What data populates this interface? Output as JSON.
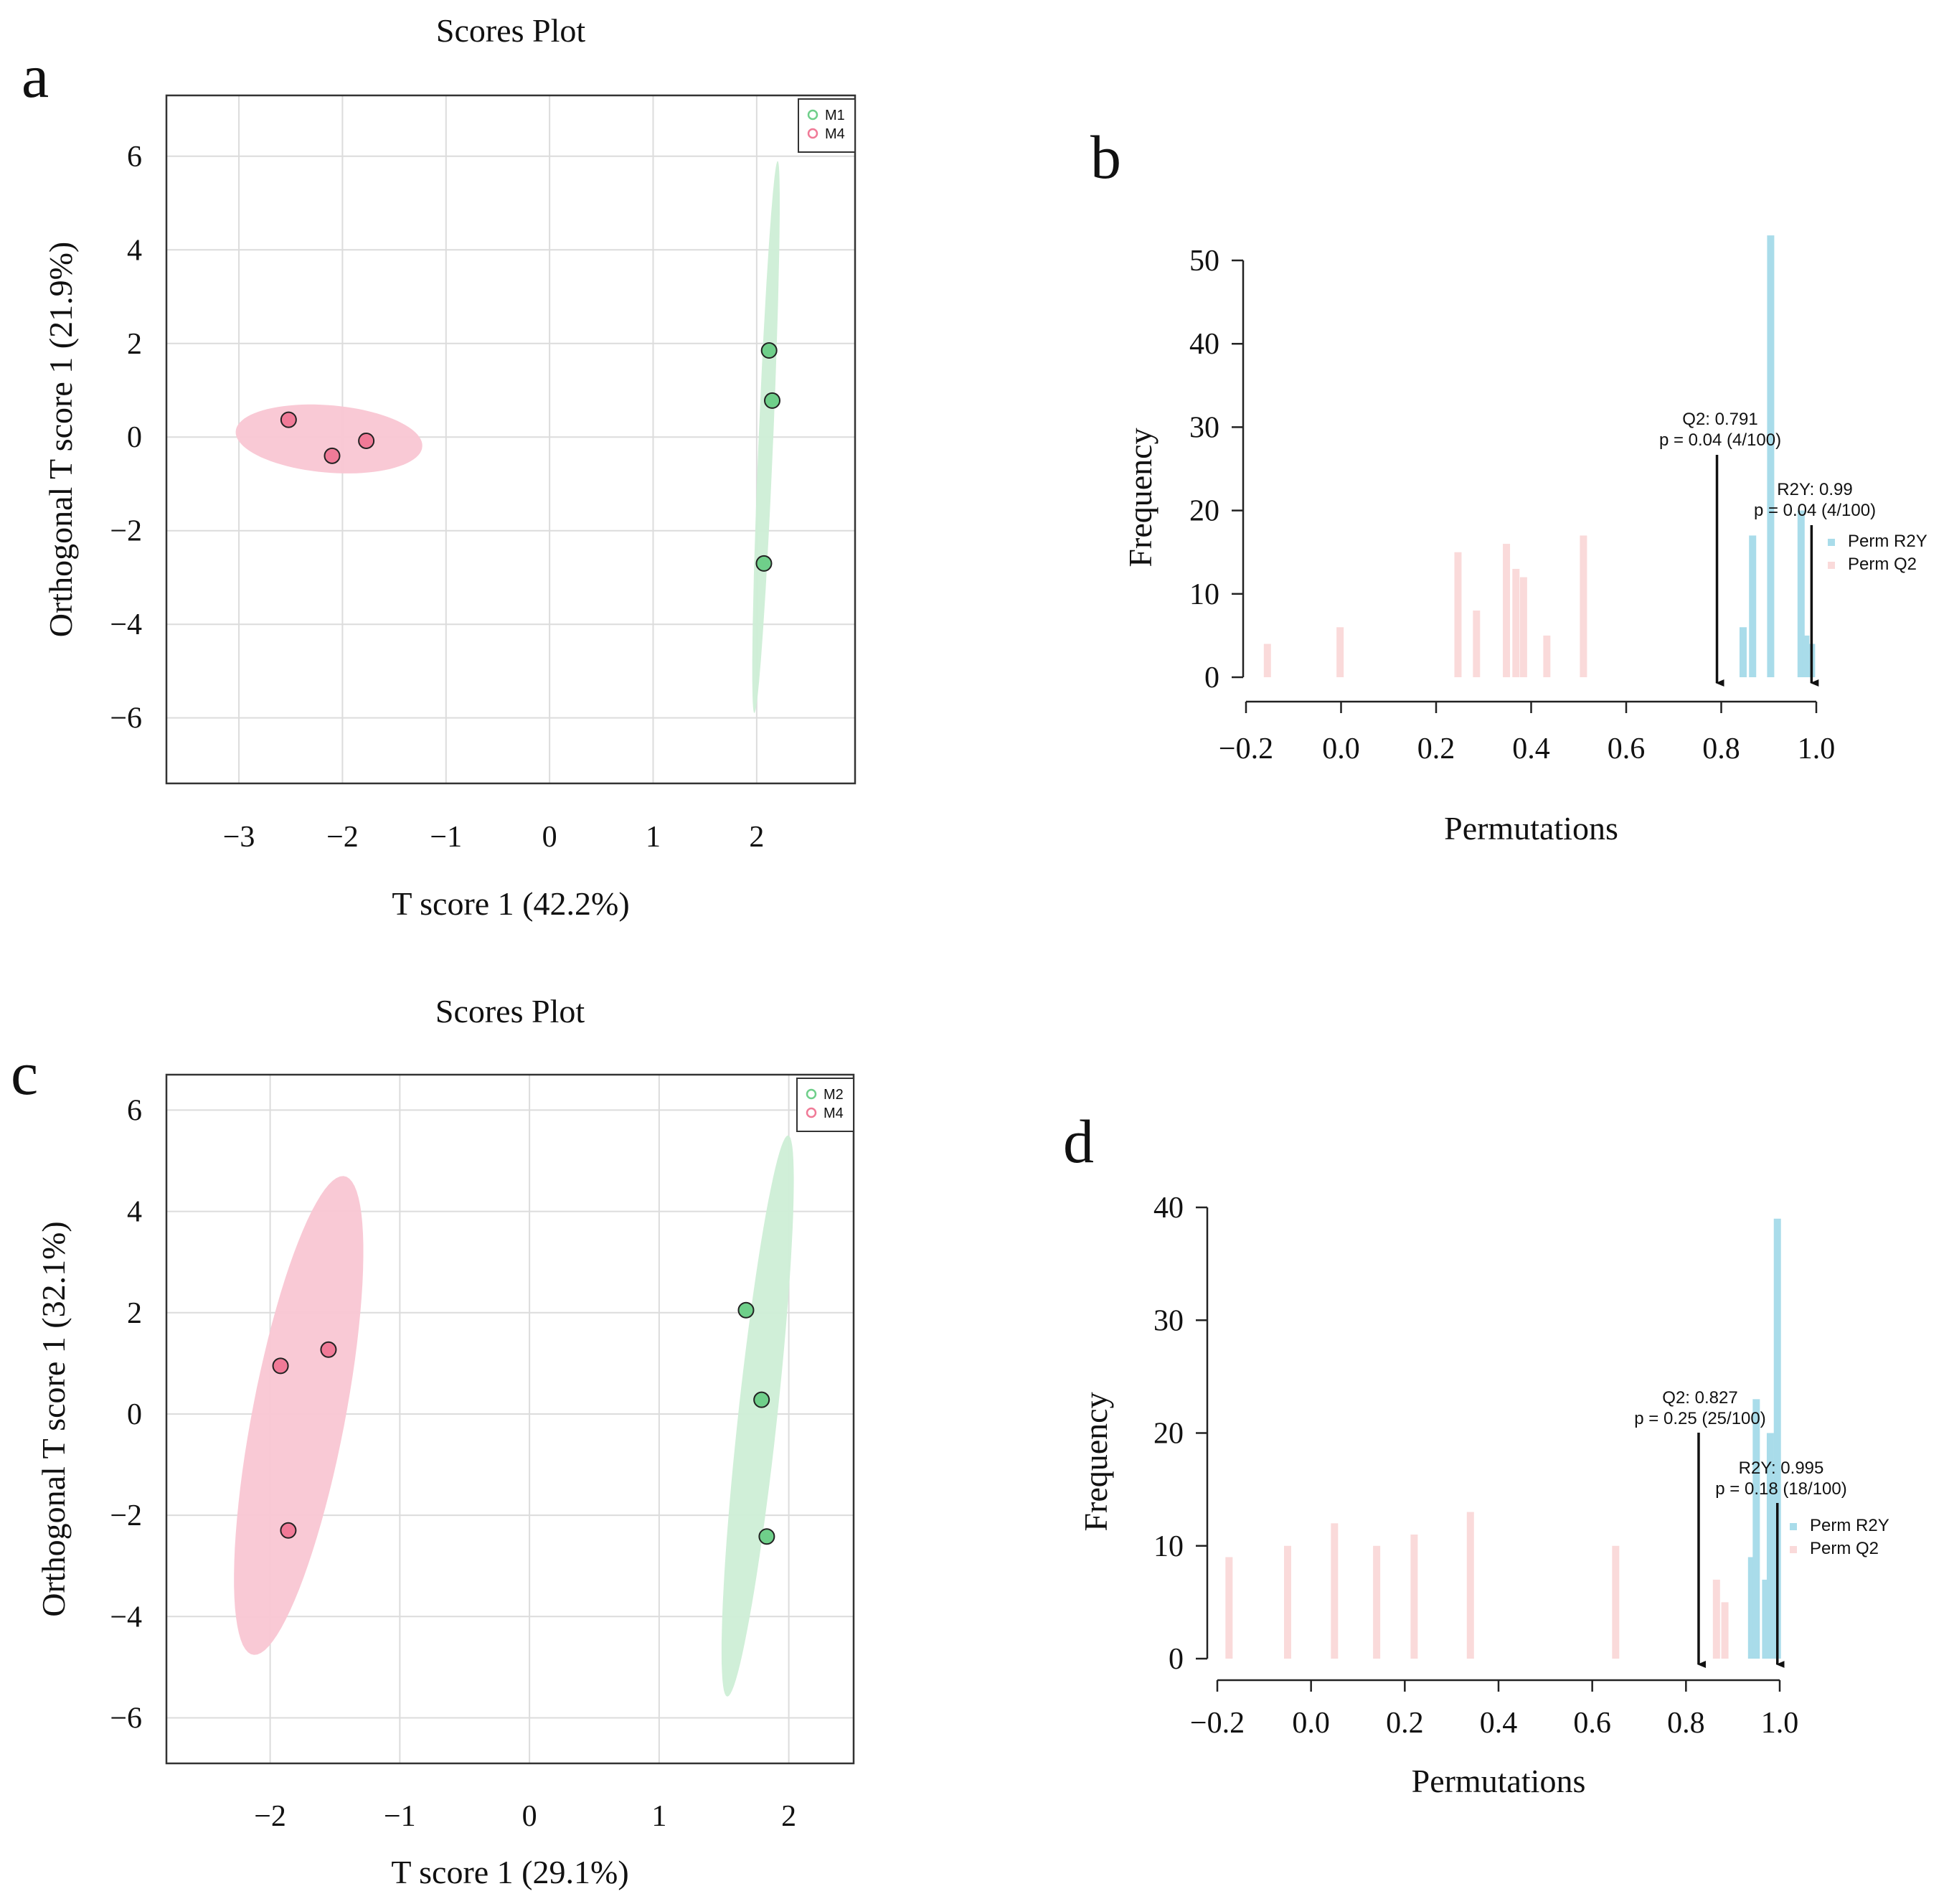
{
  "panels": [
    {
      "letter": "a"
    },
    {
      "letter": "b"
    },
    {
      "letter": "c"
    },
    {
      "letter": "d"
    }
  ],
  "chart_data": [
    {
      "panel": "a",
      "type": "scatter",
      "title": "Scores Plot",
      "xlabel": "T score 1 (42.2%)",
      "ylabel": "Orthogonal T score 1 (21.9%)",
      "xlim": [
        -3.7,
        2.95
      ],
      "ylim": [
        -7.4,
        7.3
      ],
      "xticks": [
        -3,
        -2,
        -1,
        0,
        1,
        2
      ],
      "yticks": [
        -6,
        -4,
        -2,
        0,
        2,
        4,
        6
      ],
      "xtick_labels": [
        "−3",
        "−2",
        "−1",
        "0",
        "1",
        "2"
      ],
      "ytick_labels": [
        "−6",
        "−4",
        "−2",
        "0",
        "2",
        "4",
        "6"
      ],
      "grid": true,
      "legend_position": "top-right",
      "series": [
        {
          "name": "M1",
          "color": "#6fcf8a",
          "ellipse_color": "#cdeed6",
          "points": [
            [
              2.12,
              1.85
            ],
            [
              2.15,
              0.78
            ],
            [
              2.07,
              -2.7
            ]
          ],
          "ellipse": {
            "cx": 2.09,
            "cy": 0.0,
            "rx": 5.9,
            "ry": 0.09,
            "angle_deg": 88.6
          }
        },
        {
          "name": "M4",
          "color": "#f07a97",
          "ellipse_color": "#f9c6d3",
          "points": [
            [
              -2.52,
              0.37
            ],
            [
              -2.1,
              -0.4
            ],
            [
              -1.77,
              -0.08
            ]
          ],
          "ellipse": {
            "cx": -2.13,
            "cy": -0.04,
            "rx": 0.93,
            "ry": 0.7,
            "angle_deg": -22
          }
        }
      ]
    },
    {
      "panel": "b",
      "type": "bar",
      "xlabel": "Permutations",
      "ylabel": "Frequency",
      "xlim": [
        -0.2,
        1.0
      ],
      "ylim": [
        0,
        50
      ],
      "xticks": [
        -0.2,
        0.0,
        0.2,
        0.4,
        0.6,
        0.8,
        1.0
      ],
      "yticks": [
        0,
        10,
        20,
        30,
        40,
        50
      ],
      "xtick_labels": [
        "−0.2",
        "0.0",
        "0.2",
        "0.4",
        "0.6",
        "0.8",
        "1.0"
      ],
      "ytick_labels": [
        "0",
        "10",
        "20",
        "30",
        "40",
        "50"
      ],
      "legend_position": "right",
      "series": [
        {
          "name": "Perm R2Y",
          "color": "#a9dcea",
          "bars": [
            [
              0.846,
              6
            ],
            [
              0.866,
              17
            ],
            [
              0.904,
              53
            ],
            [
              0.968,
              20
            ],
            [
              0.978,
              5
            ],
            [
              0.99,
              4
            ]
          ]
        },
        {
          "name": "Perm Q2",
          "color": "#fadada",
          "bars": [
            [
              -0.155,
              4
            ],
            [
              -0.002,
              6
            ],
            [
              0.246,
              15
            ],
            [
              0.285,
              8
            ],
            [
              0.348,
              16
            ],
            [
              0.368,
              13
            ],
            [
              0.384,
              12
            ],
            [
              0.433,
              5
            ],
            [
              0.51,
              17
            ]
          ]
        }
      ],
      "annotations": [
        {
          "text": "Q2: 0.791",
          "text2": "p = 0.04 (4/100)",
          "x": 0.791
        },
        {
          "text": "R2Y: 0.99",
          "text2": "p = 0.04 (4/100)",
          "x": 0.99
        }
      ]
    },
    {
      "panel": "c",
      "type": "scatter",
      "title": "Scores Plot",
      "xlabel": "T score 1 (29.1%)",
      "ylabel": "Orthogonal T score 1 (32.1%)",
      "xlim": [
        -2.8,
        2.5
      ],
      "ylim": [
        -6.9,
        6.7
      ],
      "xticks": [
        -2,
        -1,
        0,
        1,
        2
      ],
      "yticks": [
        -6,
        -4,
        -2,
        0,
        2,
        4,
        6
      ],
      "xtick_labels": [
        "−2",
        "−1",
        "0",
        "1",
        "2"
      ],
      "ytick_labels": [
        "−6",
        "−4",
        "−2",
        "0",
        "2",
        "4",
        "6"
      ],
      "grid": true,
      "legend_position": "top-right",
      "series": [
        {
          "name": "M2",
          "color": "#6fcf8a",
          "ellipse_color": "#cdeed6",
          "points": [
            [
              1.67,
              2.05
            ],
            [
              1.79,
              0.28
            ],
            [
              1.83,
              -2.42
            ]
          ],
          "ellipse": {
            "cx": 1.76,
            "cy": -0.04,
            "rx": 5.55,
            "ry": 0.2,
            "angle_deg": 86.8
          }
        },
        {
          "name": "M4",
          "color": "#f07a97",
          "ellipse_color": "#f9c6d3",
          "points": [
            [
              -1.92,
              0.95
            ],
            [
              -1.55,
              1.27
            ],
            [
              -1.86,
              -2.3
            ]
          ],
          "ellipse": {
            "cx": -1.78,
            "cy": -0.03,
            "rx": 4.75,
            "ry": 0.48,
            "angle_deg": 84.5
          }
        }
      ]
    },
    {
      "panel": "d",
      "type": "bar",
      "xlabel": "Permutations",
      "ylabel": "Frequency",
      "xlim": [
        -0.2,
        1.0
      ],
      "ylim": [
        0,
        40
      ],
      "xticks": [
        -0.2,
        0.0,
        0.2,
        0.4,
        0.6,
        0.8,
        1.0
      ],
      "yticks": [
        0,
        10,
        20,
        30,
        40
      ],
      "xtick_labels": [
        "−0.2",
        "0.0",
        "0.2",
        "0.4",
        "0.6",
        "0.8",
        "1.0"
      ],
      "ytick_labels": [
        "0",
        "10",
        "20",
        "30",
        "40"
      ],
      "legend_position": "right",
      "series": [
        {
          "name": "Perm R2Y",
          "color": "#a9dcea",
          "bars": [
            [
              0.94,
              9
            ],
            [
              0.95,
              23
            ],
            [
              0.97,
              7
            ],
            [
              0.98,
              20
            ],
            [
              0.995,
              39
            ]
          ]
        },
        {
          "name": "Perm Q2",
          "color": "#fadada",
          "bars": [
            [
              -0.175,
              9
            ],
            [
              -0.05,
              10
            ],
            [
              0.05,
              12
            ],
            [
              0.14,
              10
            ],
            [
              0.22,
              11
            ],
            [
              0.34,
              13
            ],
            [
              0.65,
              10
            ],
            [
              0.865,
              7
            ],
            [
              0.883,
              5
            ]
          ]
        }
      ],
      "annotations": [
        {
          "text": "Q2: 0.827",
          "text2": "p = 0.25 (25/100)",
          "x": 0.827
        },
        {
          "text": "R2Y: 0.995",
          "text2": "p = 0.18 (18/100)",
          "x": 0.995
        }
      ]
    }
  ]
}
